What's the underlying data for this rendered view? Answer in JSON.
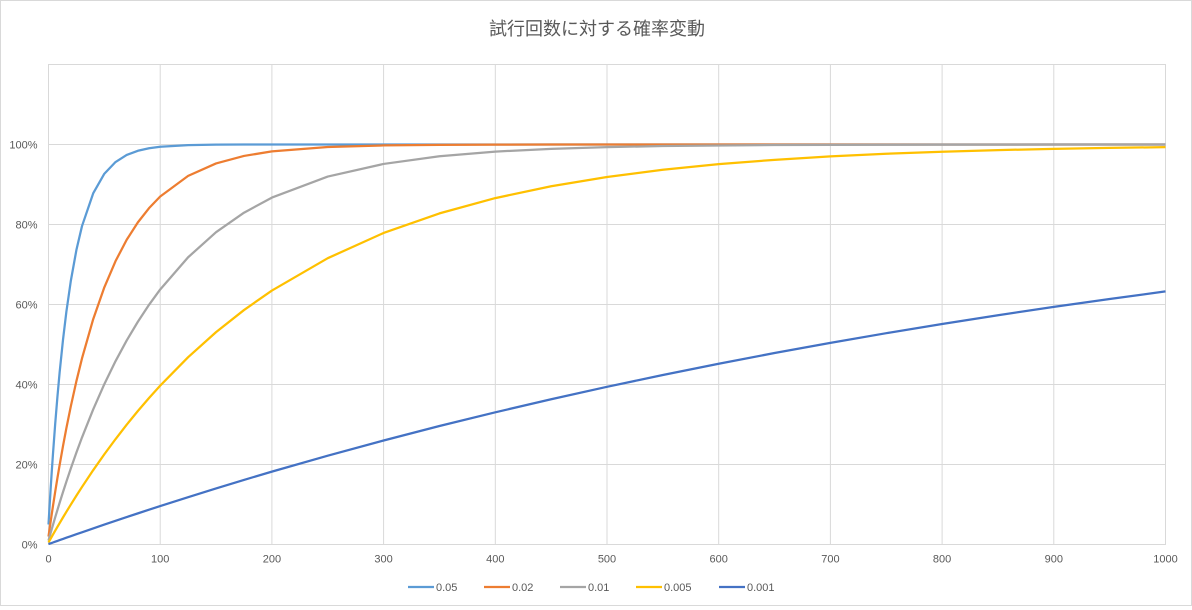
{
  "chart_data": {
    "type": "line",
    "title": "試行回数に対する確率変動",
    "xlabel": "",
    "ylabel": "",
    "xlim": [
      0,
      1000
    ],
    "ylim": [
      0,
      1.2
    ],
    "x_ticks": [
      0,
      100,
      200,
      300,
      400,
      500,
      600,
      700,
      800,
      900,
      1000
    ],
    "y_ticks": [
      0,
      0.2,
      0.4,
      0.6,
      0.8,
      1.0
    ],
    "y_tick_labels": [
      "0%",
      "20%",
      "40%",
      "60%",
      "80%",
      "100%"
    ],
    "grid": true,
    "legend_position": "bottom",
    "x": [
      0,
      1,
      2,
      3,
      4,
      6,
      8,
      10,
      13,
      16,
      20,
      25,
      30,
      40,
      50,
      60,
      70,
      80,
      90,
      100,
      125,
      150,
      175,
      200,
      250,
      300,
      350,
      400,
      450,
      500,
      550,
      600,
      650,
      700,
      750,
      800,
      850,
      900,
      950,
      1000
    ],
    "series": [
      {
        "name": "0.05",
        "color": "#5B9BD5",
        "values": [
          0.05,
          0.0975,
          0.1426,
          0.1855,
          0.2262,
          0.3017,
          0.3698,
          0.4312,
          0.5123,
          0.5819,
          0.6594,
          0.7365,
          0.7961,
          0.8779,
          0.9269,
          0.9562,
          0.9738,
          0.9843,
          0.9906,
          0.9944,
          0.9984,
          0.9996,
          0.9999,
          1,
          1,
          1,
          1,
          1,
          1,
          1,
          1,
          1,
          1,
          1,
          1,
          1,
          1,
          1,
          1,
          1
        ]
      },
      {
        "name": "0.02",
        "color": "#ED7D31",
        "values": [
          0.02,
          0.0396,
          0.0588,
          0.0776,
          0.0961,
          0.1319,
          0.1663,
          0.1993,
          0.2464,
          0.2907,
          0.3458,
          0.4086,
          0.4654,
          0.5632,
          0.6431,
          0.7084,
          0.7618,
          0.8053,
          0.8409,
          0.87,
          0.9216,
          0.9527,
          0.9714,
          0.9828,
          0.9937,
          0.9977,
          0.9992,
          0.9997,
          0.9999,
          1,
          1,
          1,
          1,
          1,
          1,
          1,
          1,
          1,
          1,
          1
        ]
      },
      {
        "name": "0.01",
        "color": "#A5A5A5",
        "values": [
          0.01,
          0.0199,
          0.0297,
          0.0394,
          0.049,
          0.0679,
          0.0865,
          0.1047,
          0.1313,
          0.1571,
          0.1903,
          0.23,
          0.2677,
          0.3377,
          0.401,
          0.4583,
          0.5101,
          0.5569,
          0.5993,
          0.6376,
          0.7181,
          0.7807,
          0.8295,
          0.8673,
          0.9198,
          0.9514,
          0.9706,
          0.9822,
          0.9892,
          0.9935,
          0.9961,
          0.9976,
          0.9986,
          0.9991,
          0.9995,
          0.9997,
          0.9998,
          0.9999,
          0.9999,
          1
        ]
      },
      {
        "name": "0.005",
        "color": "#FFC000",
        "values": [
          0.005,
          0.01,
          0.0149,
          0.0199,
          0.0248,
          0.0345,
          0.0441,
          0.0536,
          0.0678,
          0.0817,
          0.0999,
          0.1222,
          0.1439,
          0.1858,
          0.2256,
          0.2634,
          0.2995,
          0.3337,
          0.3663,
          0.3972,
          0.4682,
          0.5309,
          0.5861,
          0.6349,
          0.7158,
          0.7788,
          0.8278,
          0.866,
          0.8957,
          0.9188,
          0.9368,
          0.9508,
          0.9617,
          0.9702,
          0.9768,
          0.982,
          0.986,
          0.9891,
          0.9915,
          0.9934
        ]
      },
      {
        "name": "0.001",
        "color": "#4472C4",
        "values": [
          0.001,
          0.002,
          0.003,
          0.004,
          0.005,
          0.007,
          0.009,
          0.011,
          0.0139,
          0.0169,
          0.0208,
          0.0257,
          0.0305,
          0.0402,
          0.0497,
          0.0592,
          0.0686,
          0.0778,
          0.087,
          0.0961,
          0.1184,
          0.1402,
          0.1615,
          0.1822,
          0.2221,
          0.26,
          0.2962,
          0.3305,
          0.3631,
          0.3942,
          0.4238,
          0.4519,
          0.4787,
          0.5041,
          0.5283,
          0.5513,
          0.5732,
          0.594,
          0.6138,
          0.6327
        ]
      }
    ]
  }
}
